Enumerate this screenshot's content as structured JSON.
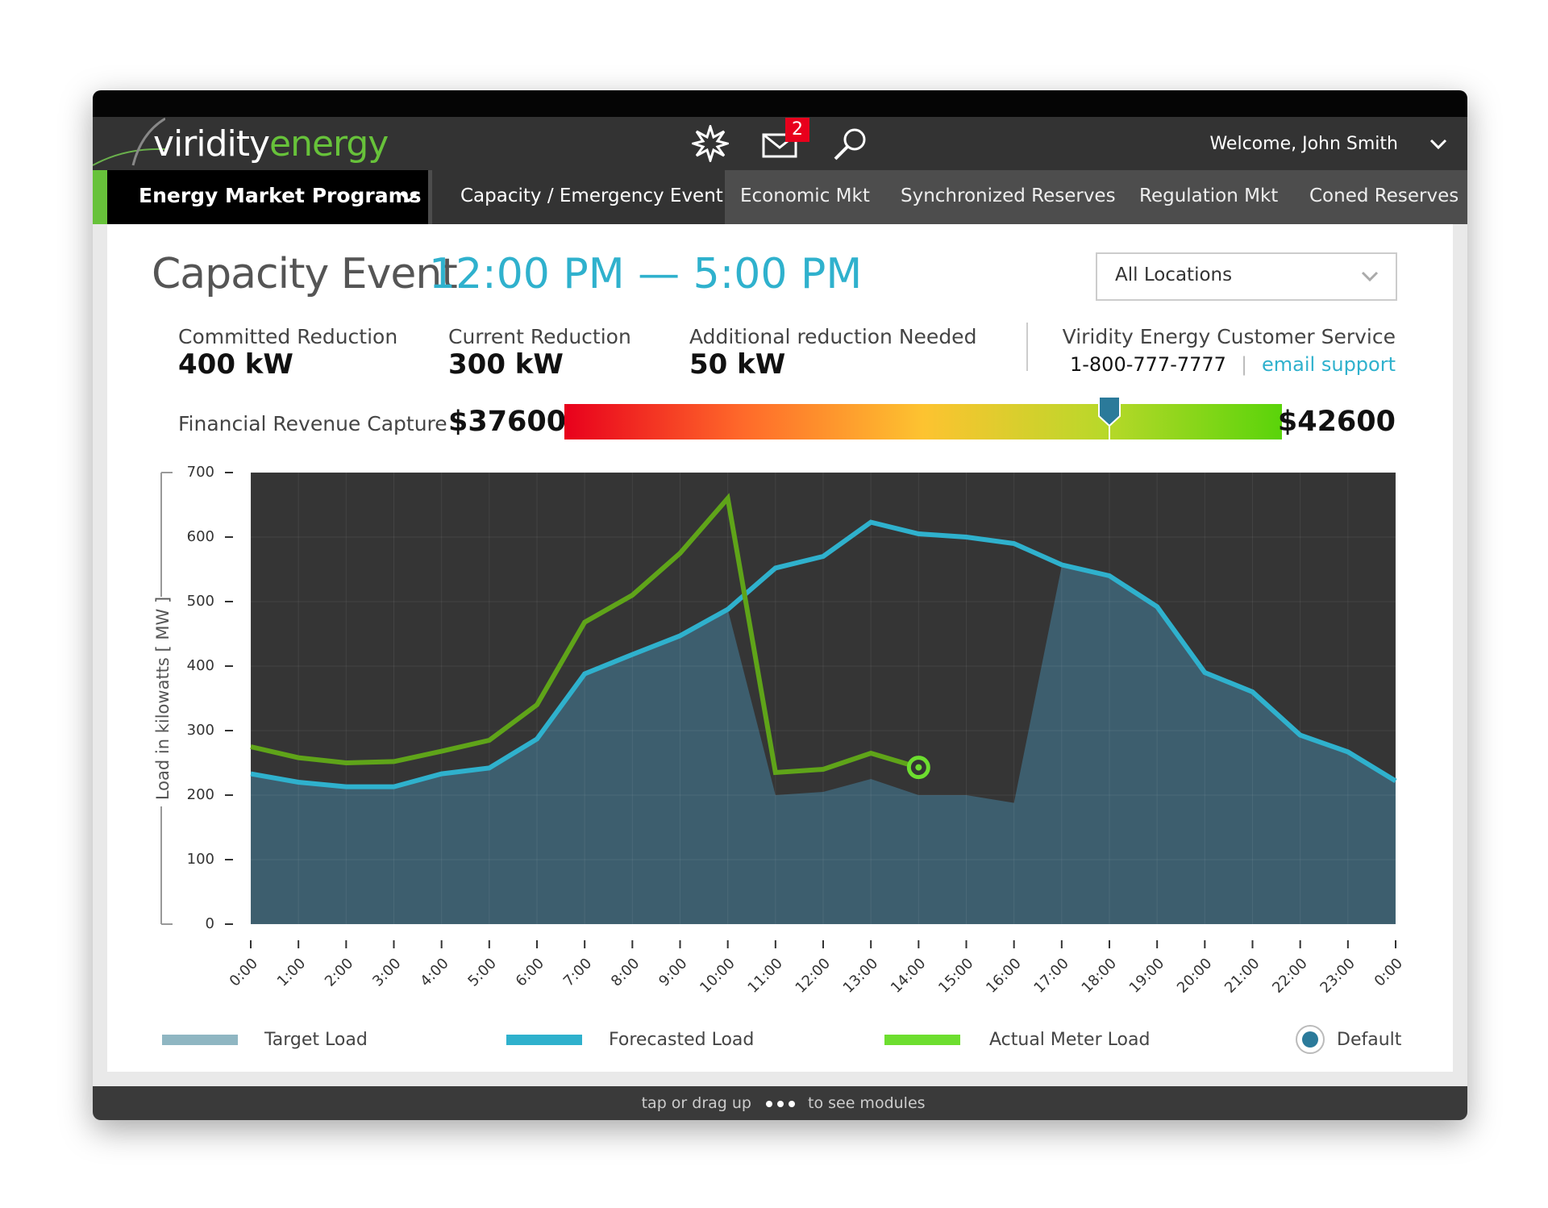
{
  "header": {
    "brand_left": "viridity",
    "brand_right": "energy",
    "badge": "2",
    "welcome": "Welcome, John Smith"
  },
  "nav": {
    "menu": "Energy Market Programs",
    "tabs": [
      "Capacity / Emergency Event",
      "Economic Mkt",
      "Synchronized Reserves",
      "Regulation Mkt",
      "Coned Reserves"
    ]
  },
  "event": {
    "title": "Capacity Event",
    "time": "12:00 PM — 5:00 PM",
    "location": "All Locations"
  },
  "stats": [
    {
      "label": "Committed Reduction",
      "value": "400 kW"
    },
    {
      "label": "Current Reduction",
      "value": "300 kW"
    },
    {
      "label": "Additional reduction Needed",
      "value": "50 kW"
    }
  ],
  "service": {
    "title": "Viridity Energy Customer Service",
    "phone": "1-800-777-7777",
    "email": "email support"
  },
  "revenue": {
    "label": "Financial Revenue Capture",
    "min": {
      "value": 37600,
      "label": "$37600"
    },
    "max": {
      "value": 42600,
      "label": "$42600"
    },
    "current": 41400,
    "gradient": [
      "#e8001c",
      "#ff6a2a",
      "#fdc330",
      "#b9d82a",
      "#5ad40a"
    ]
  },
  "footer": {
    "left": "tap or drag up",
    "right": "to see modules"
  },
  "chart_data": {
    "type": "area_line",
    "ylabel": "Load in kilowatts [ MW ]",
    "categories": [
      "0:00",
      "1:00",
      "2:00",
      "3:00",
      "4:00",
      "5:00",
      "6:00",
      "7:00",
      "8:00",
      "9:00",
      "10:00",
      "11:00",
      "12:00",
      "13:00",
      "14:00",
      "15:00",
      "16:00",
      "17:00",
      "18:00",
      "19:00",
      "20:00",
      "21:00",
      "22:00",
      "23:00",
      "0:00"
    ],
    "ylim": [
      0,
      700
    ],
    "yticks": [
      0,
      100,
      200,
      300,
      400,
      500,
      600,
      700
    ],
    "grid": true,
    "series": [
      {
        "name": "Target Load",
        "kind": "area",
        "color": "#3d5e6e",
        "legend_color": "#8fb6c2",
        "values": [
          233,
          220,
          213,
          213,
          233,
          242,
          287,
          388,
          418,
          447,
          488,
          200,
          205,
          225,
          200,
          200,
          188,
          555,
          540,
          492,
          390,
          360,
          293,
          267,
          222
        ]
      },
      {
        "name": "Forecasted Load",
        "kind": "line",
        "color": "#2fb1cd",
        "legend_color": "#2fb1cd",
        "values": [
          233,
          220,
          213,
          213,
          233,
          242,
          287,
          388,
          418,
          447,
          488,
          552,
          570,
          623,
          605,
          600,
          590,
          557,
          540,
          492,
          390,
          360,
          293,
          267,
          222
        ]
      },
      {
        "name": "Actual Meter Load",
        "kind": "line",
        "color": "#5fa419",
        "legend_color": "#6dde2f",
        "values": [
          275,
          258,
          250,
          252,
          268,
          285,
          340,
          468,
          510,
          575,
          660,
          235,
          240,
          265,
          243,
          null,
          null,
          null,
          null,
          null,
          null,
          null,
          null,
          null,
          null
        ]
      }
    ],
    "default_toggle": "Default"
  }
}
